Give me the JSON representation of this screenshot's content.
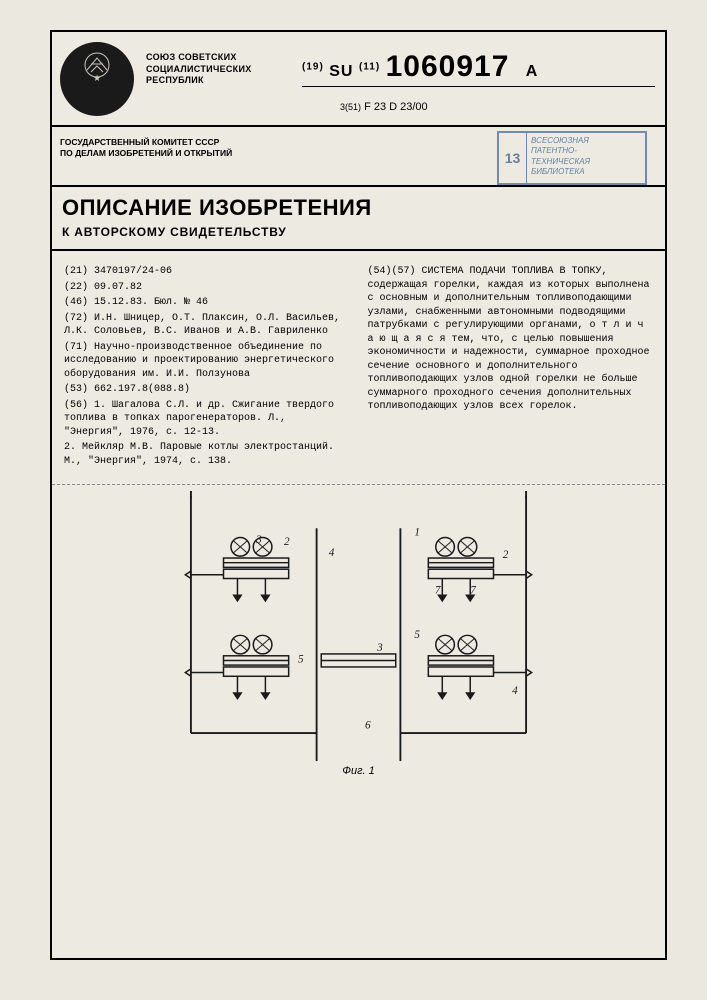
{
  "header": {
    "union_text": "СОЮЗ СОВЕТСКИХ\nСОЦИАЛИСТИЧЕСКИХ\nРЕСПУБЛИК",
    "country_code_prefix": "(19)",
    "country_code": "SU",
    "pubnum_prefix": "(11)",
    "pubnum": "1060917",
    "kind_code": "A",
    "ipc_prefix": "3(51)",
    "ipc": "F 23 D 23/00",
    "committee": "ГОСУДАРСТВЕННЫЙ КОМИТЕТ СССР\nПО ДЕЛАМ ИЗОБРЕТЕНИЙ И ОТКРЫТИЙ",
    "stamp_num": "13",
    "stamp_text": "ВСЕСОЮЗНАЯ\nПАТЕНТНО-\nТЕХНИЧЕСКАЯ\nБИБЛИОТЕКА",
    "title_main": "ОПИСАНИЕ ИЗОБРЕТЕНИЯ",
    "title_sub": "К АВТОРСКОМУ СВИДЕТЕЛЬСТВУ"
  },
  "biblio": {
    "f21": "(21) 3470197/24-06",
    "f22": "(22) 09.07.82",
    "f46": "(46) 15.12.83. Бюл. № 46",
    "f72": "(72) И.Н. Шницер, О.Т. Плаксин, О.Л. Васильев, Л.К. Соловьев, В.С. Иванов и А.В. Гавриленко",
    "f71": "(71) Научно-производственное объединение по исследованию и проектированию энергетического оборудования им. И.И. Ползунова",
    "f53": "(53) 662.197.8(088.8)",
    "f56": "(56) 1. Шагалова С.Л. и др. Сжигание твердого топлива в топках парогенераторов. Л., \"Энергия\", 1976, с. 12-13.",
    "f56b": "2. Мейкляр М.В. Паровые котлы электростанций. М., \"Энергия\", 1974, с. 138."
  },
  "abstract": {
    "f54_label": "(54)(57)",
    "f54_title": "СИСТЕМА ПОДАЧИ ТОПЛИВА В ТОПКУ,",
    "f54_body": "содержащая горелки, каждая из которых выполнена с основным и дополнительным топливоподающими узлами, снабженными автономными подводящими патрубками с регулирующими органами, о т л и ч а ю щ а я с я  тем, что, с целью повышения экономичности и надежности, суммарное проходное сечение основного и дополнительного топливоподающих узлов одной горелки не больше суммарного проходного сечения дополнительных топливоподающих узлов всех горелок."
  },
  "figure": {
    "caption": "Фиг. 1",
    "labels": [
      "1",
      "2",
      "3",
      "4",
      "5",
      "6",
      "7"
    ],
    "colors": {
      "line": "#1a1a1a",
      "hatch": "#1a1a1a",
      "bg": "#edeae2"
    }
  },
  "side": {
    "prefix": "(19)",
    "country": "SU",
    "midfix": "(11)",
    "num": "1060917",
    "kind": "A"
  }
}
